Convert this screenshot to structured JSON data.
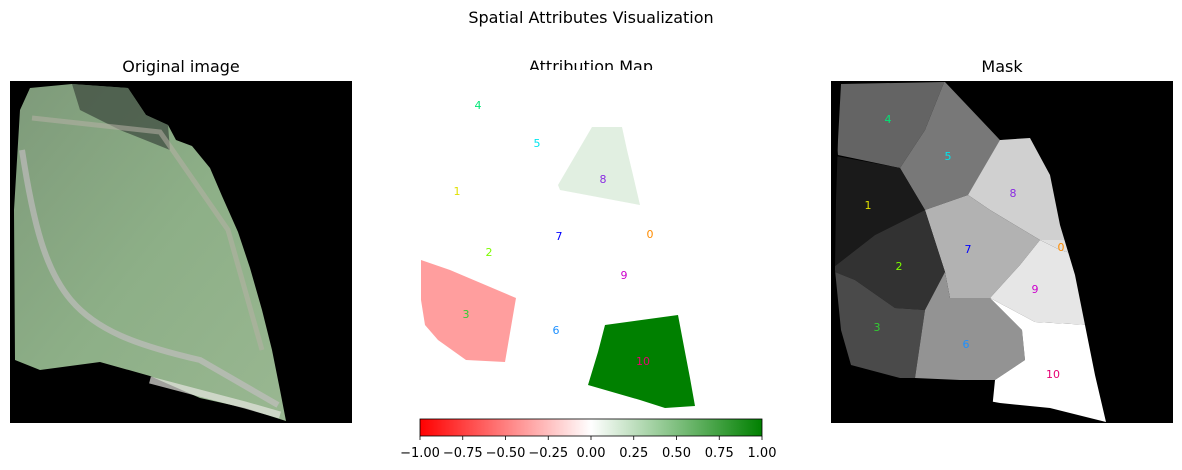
{
  "figure": {
    "suptitle": "Spatial Attributes Visualization"
  },
  "panels": [
    {
      "title": "Original image"
    },
    {
      "title": "Attribution Map"
    },
    {
      "title": "Mask"
    }
  ],
  "colors": {
    "negative": "#ff0000",
    "neutral": "#ffffff",
    "positive": "#008000",
    "background": "#000000"
  },
  "chart_data": [
    {
      "type": "heatmap",
      "title": "Attribution Map",
      "colormap": [
        "#ff0000",
        "#ffffff",
        "#008000"
      ],
      "colorbar": {
        "orientation": "horizontal",
        "range": [
          -1.0,
          1.0
        ],
        "ticks": [
          -1.0,
          -0.75,
          -0.5,
          -0.25,
          0.0,
          0.25,
          0.5,
          0.75,
          1.0
        ],
        "tick_labels": [
          "−1.00",
          "−0.75",
          "−0.50",
          "−0.25",
          "0.00",
          "0.25",
          "0.50",
          "0.75",
          "1.00"
        ]
      },
      "segments": [
        {
          "label": "0",
          "value": 0.0,
          "label_color": "#ff8c00"
        },
        {
          "label": "1",
          "value": 0.0,
          "label_color": "#e0e000"
        },
        {
          "label": "2",
          "value": 0.0,
          "label_color": "#7cfc00"
        },
        {
          "label": "3",
          "value": -0.38,
          "label_color": "#32cd32"
        },
        {
          "label": "4",
          "value": 0.0,
          "label_color": "#00e676"
        },
        {
          "label": "5",
          "value": 0.0,
          "label_color": "#00e5ee"
        },
        {
          "label": "6",
          "value": 0.0,
          "label_color": "#1e90ff"
        },
        {
          "label": "7",
          "value": 0.0,
          "label_color": "#0000ff"
        },
        {
          "label": "8",
          "value": 0.12,
          "label_color": "#8a2be2"
        },
        {
          "label": "9",
          "value": 0.0,
          "label_color": "#cc00cc"
        },
        {
          "label": "10",
          "value": 1.0,
          "label_color": "#e60073"
        }
      ]
    }
  ],
  "mask": {
    "labels": [
      "0",
      "1",
      "2",
      "3",
      "4",
      "5",
      "6",
      "7",
      "8",
      "9",
      "10"
    ]
  }
}
